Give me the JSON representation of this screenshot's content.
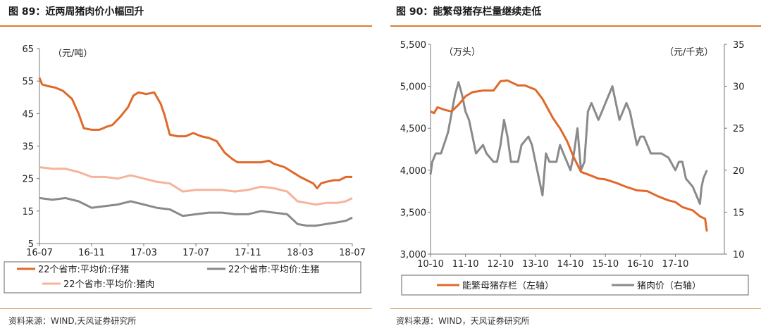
{
  "colors": {
    "orange": "#e0692a",
    "gray": "#8a8a8a",
    "lightorange": "#f5b49a",
    "accent": "#e07a2e"
  },
  "left_panel": {
    "title": "图 89：近两周猪肉价小幅回升",
    "source": "资料来源：WIND,天风证券研究所",
    "unit_label": "（元/吨）"
  },
  "right_panel": {
    "title": "图 90：能繁母猪存栏量继续走低",
    "source": "资料来源：WIND，天风证券研究所",
    "unit_left": "（万头）",
    "unit_right": "（元/千克）"
  },
  "chart_data": [
    {
      "type": "line",
      "title": "近两周猪肉价小幅回升",
      "ylabel": "（元/吨）",
      "ylim": [
        5,
        65
      ],
      "yticks": [
        "5",
        "15",
        "25",
        "35",
        "45",
        "55",
        "65"
      ],
      "xlim": [
        0,
        24
      ],
      "xticks": [
        {
          "at": 0,
          "label": "16-07"
        },
        {
          "at": 4,
          "label": "16-11"
        },
        {
          "at": 8,
          "label": "17-03"
        },
        {
          "at": 12,
          "label": "17-07"
        },
        {
          "at": 16,
          "label": "17-11"
        },
        {
          "at": 20,
          "label": "18-03"
        },
        {
          "at": 24,
          "label": "18-07"
        }
      ],
      "series": [
        {
          "name": "22个省市:平均价:仔猪",
          "color": "#e0692a",
          "x": [
            0,
            0.2,
            0.6,
            1.2,
            1.8,
            2.5,
            3.0,
            3.4,
            4.0,
            4.6,
            5.2,
            5.6,
            6.2,
            6.8,
            7.2,
            7.6,
            8.2,
            8.8,
            9.3,
            9.6,
            10.0,
            10.6,
            11.2,
            11.8,
            12.4,
            13.0,
            13.6,
            14.2,
            14.8,
            15.2,
            15.8,
            16.4,
            17.0,
            17.6,
            18.0,
            18.4,
            18.8,
            19.2,
            19.6,
            20.0,
            20.5,
            21.0,
            21.3,
            21.6,
            22.0,
            22.6,
            23.0,
            23.5,
            24.0
          ],
          "y": [
            56,
            54,
            53.5,
            53,
            52,
            49.5,
            45,
            40.5,
            40,
            40,
            41,
            41.5,
            44,
            47,
            50.5,
            51.5,
            51,
            51.5,
            48,
            44.5,
            38.5,
            38,
            38,
            39,
            38,
            37.5,
            36.5,
            33,
            31,
            30,
            30,
            30,
            30,
            30.5,
            29.5,
            29,
            28.5,
            27.5,
            26.5,
            25.5,
            24.5,
            23.5,
            22,
            23.5,
            24,
            24.5,
            24.5,
            25.5,
            25.5
          ]
        },
        {
          "name": "22个省市:平均价:生猪",
          "color": "#8a8a8a",
          "x": [
            0,
            1.0,
            2.0,
            3.0,
            4.0,
            5.0,
            6.0,
            7.0,
            8.0,
            9.0,
            10.0,
            11.0,
            12.0,
            13.0,
            14.0,
            15.0,
            16.0,
            17.0,
            18.0,
            19.0,
            19.8,
            20.5,
            21.2,
            22.0,
            22.8,
            23.5,
            24.0
          ],
          "y": [
            19,
            18.5,
            19,
            18,
            16,
            16.5,
            17,
            18,
            17,
            16,
            15.5,
            13.5,
            14,
            14.5,
            14.5,
            14,
            14,
            15,
            14.5,
            14,
            11,
            10.5,
            10.5,
            11,
            11.5,
            12,
            13
          ]
        },
        {
          "name": "22个省市:平均价:猪肉",
          "color": "#f5b49a",
          "x": [
            0,
            1.0,
            2.0,
            3.0,
            4.0,
            5.0,
            6.0,
            7.0,
            8.0,
            9.0,
            10.0,
            11.0,
            12.0,
            13.0,
            14.0,
            15.0,
            16.0,
            17.0,
            18.0,
            19.0,
            19.8,
            20.5,
            21.2,
            22.0,
            22.8,
            23.5,
            24.0
          ],
          "y": [
            28.5,
            28,
            28,
            27,
            25.5,
            25.5,
            25,
            26,
            25,
            24,
            23.5,
            21,
            21.5,
            21.5,
            21.5,
            21,
            21.5,
            22.5,
            22,
            21,
            18,
            17.5,
            17,
            17.5,
            17.5,
            18,
            19
          ]
        }
      ],
      "legend": [
        "22个省市:平均价:仔猪",
        "22个省市:平均价:生猪",
        "22个省市:平均价:猪肉"
      ]
    },
    {
      "type": "line",
      "title": "能繁母猪存栏量继续走低",
      "ylabel_left": "（万头）",
      "ylabel_right": "（元/千克）",
      "ylim_left": [
        3000,
        5500
      ],
      "ylim_right": [
        10,
        35
      ],
      "yticks_left": [
        "3,000",
        "3,500",
        "4,000",
        "4,500",
        "5,000",
        "5,500"
      ],
      "yticks_right": [
        "10",
        "15",
        "20",
        "25",
        "30",
        "35"
      ],
      "xlim": [
        0,
        8
      ],
      "xticks": [
        {
          "at": 0,
          "label": "10-10"
        },
        {
          "at": 1,
          "label": "11-10"
        },
        {
          "at": 2,
          "label": "12-10"
        },
        {
          "at": 3,
          "label": "13-10"
        },
        {
          "at": 4,
          "label": "14-10"
        },
        {
          "at": 5,
          "label": "15-10"
        },
        {
          "at": 6,
          "label": "16-10"
        },
        {
          "at": 7,
          "label": "17-10"
        }
      ],
      "series": [
        {
          "name": "能繁母猪存栏（左轴）",
          "axis": "left",
          "color": "#e0692a",
          "x": [
            0,
            0.1,
            0.2,
            0.4,
            0.6,
            0.8,
            1.0,
            1.2,
            1.5,
            1.8,
            2.0,
            2.2,
            2.5,
            2.7,
            3.0,
            3.2,
            3.5,
            3.7,
            3.9,
            4.1,
            4.3,
            4.5,
            4.8,
            5.0,
            5.3,
            5.6,
            5.9,
            6.2,
            6.5,
            6.8,
            7.0,
            7.2,
            7.5,
            7.7,
            7.85,
            7.9
          ],
          "y": [
            4700,
            4680,
            4750,
            4720,
            4700,
            4780,
            4880,
            4930,
            4950,
            4950,
            5060,
            5070,
            5010,
            5010,
            4960,
            4850,
            4620,
            4500,
            4350,
            4150,
            3980,
            3950,
            3900,
            3890,
            3850,
            3800,
            3760,
            3750,
            3690,
            3640,
            3620,
            3560,
            3520,
            3450,
            3420,
            3270
          ]
        },
        {
          "name": "猪肉价（右轴）",
          "axis": "right",
          "color": "#8a8a8a",
          "x": [
            0,
            0.05,
            0.15,
            0.3,
            0.5,
            0.7,
            0.8,
            0.9,
            1.0,
            1.1,
            1.2,
            1.3,
            1.5,
            1.6,
            1.8,
            1.9,
            2.0,
            2.1,
            2.2,
            2.3,
            2.4,
            2.5,
            2.6,
            2.8,
            2.9,
            3.0,
            3.1,
            3.2,
            3.3,
            3.4,
            3.5,
            3.6,
            3.7,
            3.8,
            3.9,
            4.0,
            4.1,
            4.2,
            4.3,
            4.4,
            4.5,
            4.6,
            4.8,
            4.9,
            5.0,
            5.1,
            5.2,
            5.4,
            5.5,
            5.6,
            5.7,
            5.8,
            5.9,
            6.0,
            6.1,
            6.3,
            6.5,
            6.6,
            6.8,
            7.0,
            7.1,
            7.2,
            7.3,
            7.5,
            7.6,
            7.7,
            7.75,
            7.8,
            7.9
          ],
          "y": [
            19.5,
            21,
            22,
            22,
            24.5,
            29,
            30.5,
            29,
            27,
            26,
            24,
            22,
            23,
            22,
            21,
            21,
            23,
            26,
            24,
            21,
            21,
            21,
            23,
            24,
            23,
            21,
            19,
            17,
            22,
            21,
            21,
            21,
            23,
            22,
            21,
            20,
            22,
            25,
            20,
            21,
            27,
            28,
            26,
            27,
            28,
            29,
            30,
            26,
            27,
            28,
            27,
            25,
            23,
            24,
            24,
            22,
            22,
            22,
            21.5,
            20,
            21,
            21,
            19,
            18,
            17,
            16,
            18,
            19,
            20
          ]
        }
      ],
      "legend": [
        "能繁母猪存栏（左轴）",
        "猪肉价（右轴）"
      ]
    }
  ]
}
